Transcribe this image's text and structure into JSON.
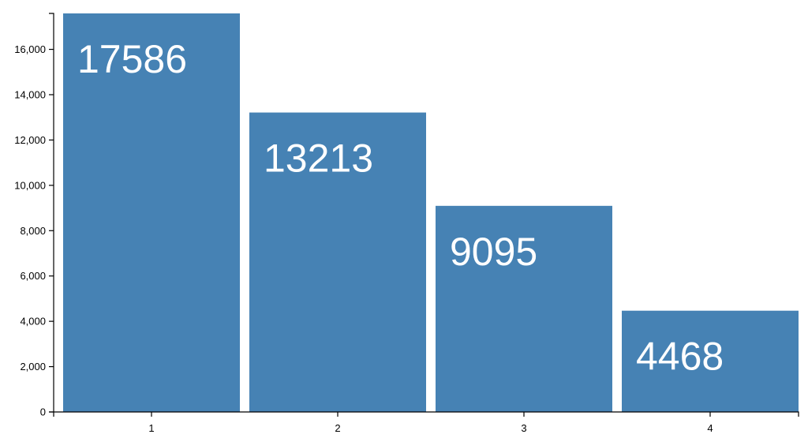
{
  "chart_data": {
    "type": "bar",
    "title": "",
    "xlabel": "",
    "ylabel": "",
    "categories": [
      "1",
      "2",
      "3",
      "4"
    ],
    "values": [
      17586,
      13213,
      9095,
      4468
    ],
    "data_labels": [
      "17586",
      "13213",
      "9095",
      "4468"
    ],
    "ylim": [
      0,
      17586
    ],
    "y_ticks": [
      0,
      2000,
      4000,
      6000,
      8000,
      10000,
      12000,
      14000,
      16000
    ],
    "y_tick_labels": [
      "0",
      "2,000",
      "4,000",
      "6,000",
      "8,000",
      "10,000",
      "12,000",
      "14,000",
      "16,000"
    ],
    "bar_color": "#4682b4",
    "label_color": "#ffffff",
    "grid": false,
    "legend": "none"
  }
}
